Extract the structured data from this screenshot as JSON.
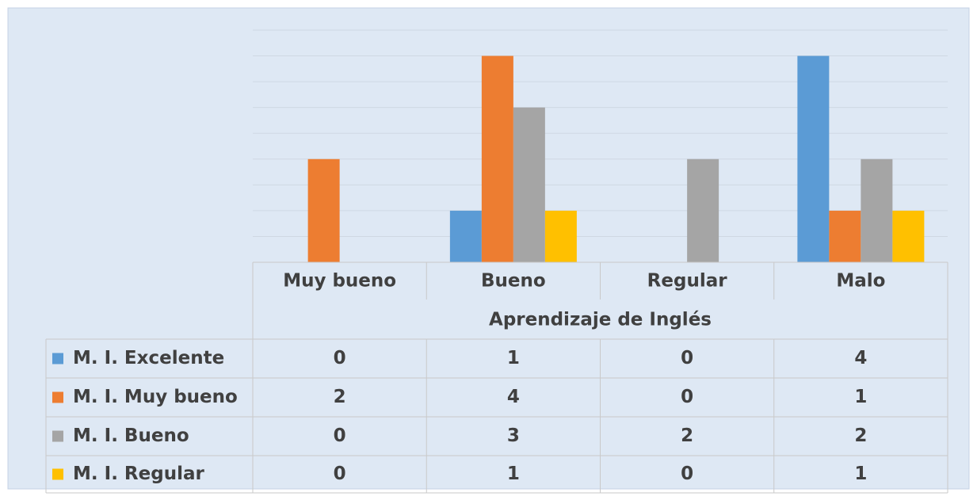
{
  "chart_data": {
    "type": "bar",
    "categories": [
      "Muy bueno",
      "Bueno",
      "Regular",
      "Malo"
    ],
    "xlabel": "Aprendizaje de Inglés",
    "series": [
      {
        "name": "M. I. Excelente",
        "color": "#5b9bd5",
        "values": [
          0,
          1,
          0,
          4
        ]
      },
      {
        "name": "M. I. Muy bueno",
        "color": "#ed7d31",
        "values": [
          2,
          4,
          0,
          1
        ]
      },
      {
        "name": "M. I. Bueno",
        "color": "#a5a5a5",
        "values": [
          0,
          3,
          2,
          2
        ]
      },
      {
        "name": "M. I. Regular",
        "color": "#ffc000",
        "values": [
          0,
          1,
          0,
          1
        ]
      }
    ],
    "ylim": [
      0,
      4.5
    ],
    "yticks": [
      0,
      0.5,
      1,
      1.5,
      2,
      2.5,
      3,
      3.5,
      4,
      4.5
    ],
    "grid": true,
    "data_table": true
  }
}
